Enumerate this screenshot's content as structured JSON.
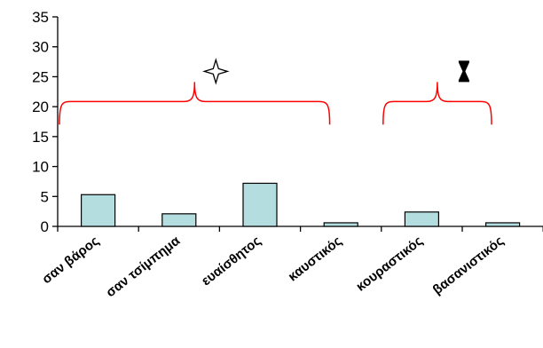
{
  "chart_data": {
    "type": "bar",
    "categories": [
      "σαν βάρος",
      "σαν τσίμπημα",
      "ευαίσθητος",
      "καυστικός",
      "κουραστικός",
      "βασανιστικός"
    ],
    "values": [
      5.3,
      2.1,
      7.2,
      0.6,
      2.4,
      0.6
    ],
    "ylim": [
      0,
      35
    ],
    "yticks": [
      0,
      5,
      10,
      15,
      20,
      25,
      30,
      35
    ],
    "xlabel": "",
    "ylabel": "",
    "title": "",
    "grid": false,
    "bar_color": "#b4dde0",
    "annotations": [
      {
        "type": "brace",
        "from_category": "σαν βάρος",
        "to_category": "καυστικός",
        "y": 21,
        "color": "#ff0000",
        "symbol": "four-point-star-icon"
      },
      {
        "type": "brace",
        "from_category": "κουραστικός",
        "to_category": "βασανιστικός",
        "y": 21,
        "color": "#ff0000",
        "symbol": "hourglass-icon"
      }
    ]
  }
}
